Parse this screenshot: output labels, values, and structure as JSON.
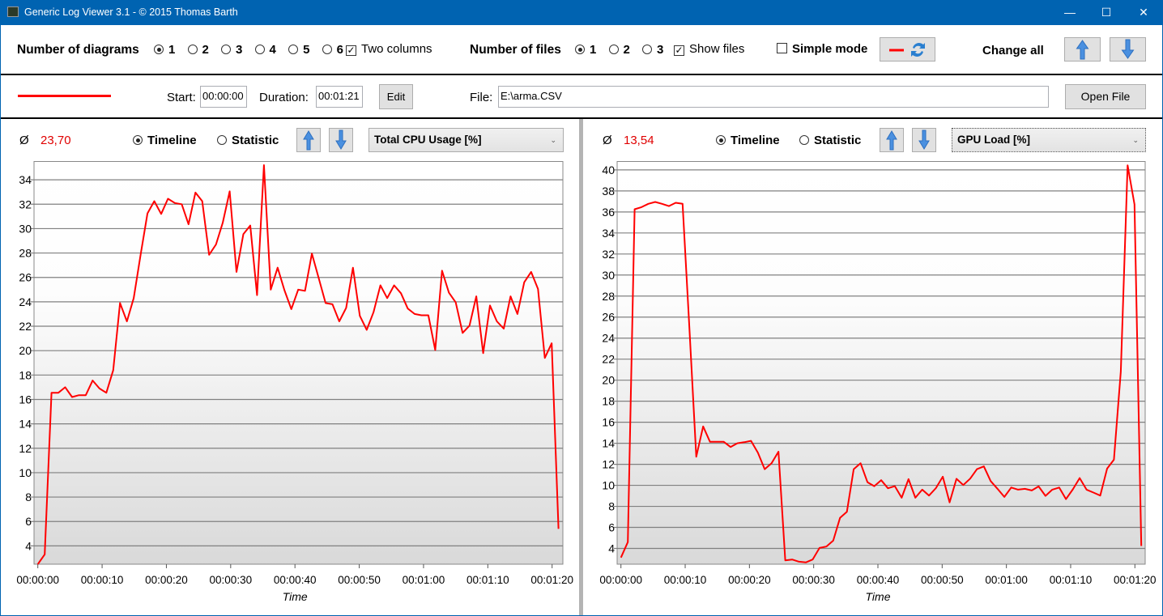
{
  "window": {
    "title": "Generic Log Viewer 3.1 - © 2015 Thomas Barth",
    "minimize": "—",
    "maximize": "☐",
    "close": "✕"
  },
  "toolbar": {
    "diagrams_label": "Number of diagrams",
    "diagram_options": [
      "1",
      "2",
      "3",
      "4",
      "5",
      "6"
    ],
    "diagram_selected": "1",
    "two_columns_label": "Two columns",
    "two_columns_checked": true,
    "files_label": "Number of files",
    "file_options": [
      "1",
      "2",
      "3"
    ],
    "file_selected": "1",
    "show_files_label": "Show files",
    "show_files_checked": true,
    "simple_mode_label": "Simple mode",
    "simple_mode_checked": false,
    "change_all_label": "Change all"
  },
  "file_row": {
    "line_color": "#ff0000",
    "start_label": "Start:",
    "start_value": "00:00:00",
    "duration_label": "Duration:",
    "duration_value": "00:01:21",
    "edit_label": "Edit",
    "file_label": "File:",
    "file_value": "E:\\arma.CSV",
    "open_label": "Open File"
  },
  "panels": [
    {
      "avg_symbol": "Ø",
      "avg_value": "23,70",
      "timeline_label": "Timeline",
      "statistic_label": "Statistic",
      "mode": "Timeline",
      "metric": "Total CPU Usage [%]"
    },
    {
      "avg_symbol": "Ø",
      "avg_value": "13,54",
      "timeline_label": "Timeline",
      "statistic_label": "Statistic",
      "mode": "Timeline",
      "metric": "GPU Load [%]"
    }
  ],
  "chart_data": [
    {
      "type": "line",
      "title": "Total CPU Usage [%]",
      "xlabel": "Time",
      "ylabel": "",
      "color": "#ff0000",
      "x_range_s": [
        0,
        81
      ],
      "ylim": [
        2.5,
        35.5
      ],
      "yticks": [
        "4",
        "6",
        "8",
        "10",
        "12",
        "14",
        "16",
        "18",
        "20",
        "22",
        "24",
        "26",
        "28",
        "30",
        "32",
        "34"
      ],
      "xticks": [
        "00:00:00",
        "00:00:10",
        "00:00:20",
        "00:00:30",
        "00:00:40",
        "00:00:50",
        "00:01:00",
        "00:01:10",
        "00:01:20"
      ],
      "values": [
        2.5,
        3.3,
        16.55,
        16.55,
        17.0,
        16.2,
        16.35,
        16.35,
        17.55,
        16.9,
        16.55,
        18.4,
        23.9,
        22.4,
        24.3,
        27.85,
        31.25,
        32.25,
        31.2,
        32.45,
        32.1,
        32.0,
        30.35,
        32.95,
        32.25,
        27.85,
        28.7,
        30.5,
        33.05,
        26.45,
        29.55,
        30.25,
        24.55,
        35.2,
        25.0,
        26.8,
        24.95,
        23.4,
        25.0,
        24.9,
        27.95,
        25.95,
        23.9,
        23.8,
        22.4,
        23.5,
        26.8,
        22.85,
        21.7,
        23.15,
        25.35,
        24.3,
        25.35,
        24.7,
        23.45,
        23.0,
        22.9,
        22.9,
        20.05,
        26.55,
        24.75,
        23.95,
        21.45,
        22.05,
        24.45,
        19.8,
        23.7,
        22.4,
        21.8,
        24.45,
        23.0,
        25.6,
        26.45,
        25.05,
        19.4,
        20.6,
        5.4
      ]
    },
    {
      "type": "line",
      "title": "GPU Load [%]",
      "xlabel": "Time",
      "ylabel": "",
      "color": "#ff0000",
      "x_range_s": [
        0,
        81
      ],
      "ylim": [
        2.5,
        40.8
      ],
      "yticks": [
        "4",
        "6",
        "8",
        "10",
        "12",
        "14",
        "16",
        "18",
        "20",
        "22",
        "24",
        "26",
        "28",
        "30",
        "32",
        "34",
        "36",
        "38",
        "40"
      ],
      "xticks": [
        "00:00:00",
        "00:00:10",
        "00:00:20",
        "00:00:30",
        "00:00:40",
        "00:00:50",
        "00:01:00",
        "00:01:10",
        "00:01:20"
      ],
      "values": [
        3.13,
        4.6,
        36.26,
        36.46,
        36.77,
        36.95,
        36.77,
        36.56,
        36.87,
        36.77,
        25.0,
        12.72,
        15.6,
        14.15,
        14.15,
        14.15,
        13.65,
        14.0,
        14.1,
        14.23,
        13.1,
        11.54,
        12.1,
        13.2,
        2.87,
        2.95,
        2.74,
        2.67,
        2.95,
        4.05,
        4.18,
        4.74,
        6.9,
        7.49,
        11.54,
        12.1,
        10.3,
        9.92,
        10.49,
        9.72,
        9.92,
        8.82,
        10.59,
        8.82,
        9.59,
        9.03,
        9.74,
        10.82,
        8.38,
        10.62,
        10.03,
        10.64,
        11.54,
        11.8,
        10.41,
        9.67,
        8.9,
        9.79,
        9.59,
        9.67,
        9.51,
        9.9,
        9.0,
        9.59,
        9.79,
        8.69,
        9.62,
        10.69,
        9.59,
        9.31,
        9.03,
        11.59,
        12.44,
        20.82,
        40.44,
        36.72,
        4.23
      ]
    }
  ]
}
